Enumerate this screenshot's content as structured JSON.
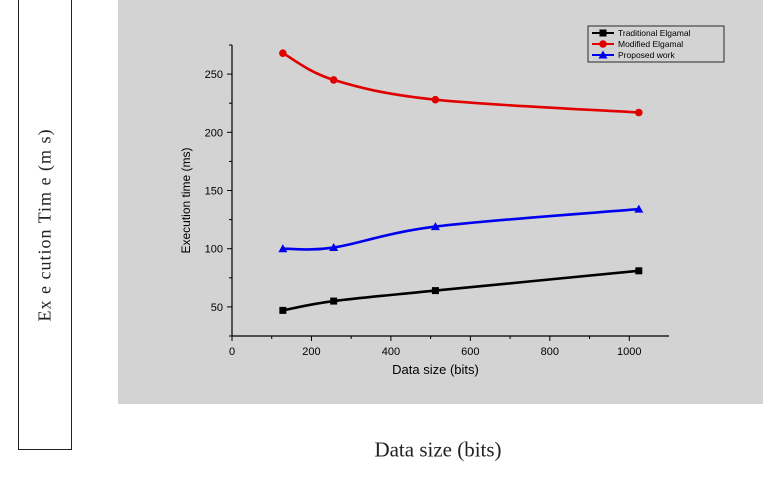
{
  "outer": {
    "ylabel": "Ex e cution Tim e (m s)",
    "xlabel": "Data size (bits)"
  },
  "chart_data": {
    "type": "line",
    "title": "",
    "xlabel": "Data size (bits)",
    "ylabel": "Execution time (ms)",
    "xlim": [
      0,
      1100
    ],
    "ylim": [
      25,
      275
    ],
    "xticks": [
      0,
      200,
      400,
      600,
      800,
      1000
    ],
    "yticks": [
      50,
      100,
      150,
      200,
      250
    ],
    "grid": false,
    "legend_position": "top-right",
    "x": [
      128,
      256,
      512,
      1024
    ],
    "series": [
      {
        "name": "Traditional Elgamal",
        "color": "#000000",
        "marker": "square",
        "values": [
          47,
          55,
          64,
          81
        ]
      },
      {
        "name": "Modified Elgamal",
        "color": "#e00000",
        "marker": "circle",
        "values": [
          268,
          245,
          228,
          217
        ]
      },
      {
        "name": "Proposed work",
        "color": "#0000ee",
        "marker": "triangle",
        "values": [
          100,
          101,
          119,
          134
        ]
      }
    ]
  }
}
